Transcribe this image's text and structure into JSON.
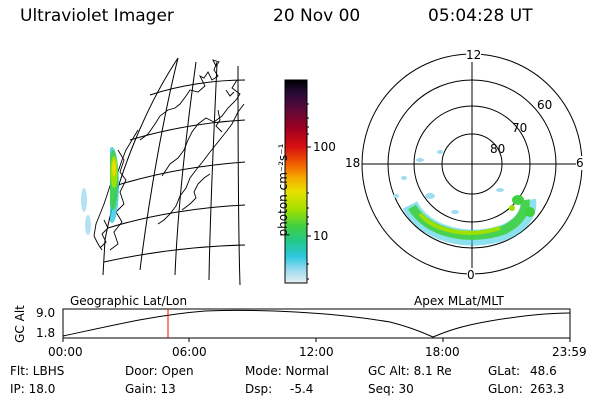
{
  "header": {
    "instrument": "Ultraviolet Imager",
    "date": "20 Nov 00",
    "time": "05:04:28 UT"
  },
  "colorbar": {
    "unit_label": "photon cm⁻²s⁻¹",
    "ticks": [
      "100",
      "10"
    ],
    "scale": "log",
    "colors": [
      "#000000",
      "#2a0a3a",
      "#5a0a3a",
      "#a00020",
      "#d81010",
      "#f05a00",
      "#f6a800",
      "#e8e000",
      "#a0e000",
      "#40d040",
      "#20c890",
      "#30c8e0",
      "#a0dcf0",
      "#e8eef0"
    ]
  },
  "left_panel": {
    "label": "Geographic Lat/Lon"
  },
  "right_panel": {
    "label": "Apex MLat/MLT",
    "mlt_labels": {
      "top": "12",
      "left": "18",
      "right": "6",
      "bottom": "0"
    },
    "lat_labels": [
      "60",
      "70",
      "80"
    ]
  },
  "gc_alt_plot": {
    "ylabel": "GC Alt",
    "ymax_label": "9.0",
    "ymin_label": "1.8",
    "x_ticks": [
      "00:00",
      "06:00",
      "12:00",
      "18:00",
      "23:59"
    ],
    "current_marker_color": "#ff0000"
  },
  "info": {
    "flt": "Flt: LBHS",
    "ip": "IP: 18.0",
    "door": "Door: Open",
    "gain": "Gain: 13",
    "mode": "Mode: Normal",
    "dsp_label": "Dsp:",
    "dsp_value": "-5.4",
    "gcalt": "GC Alt: 8.1 Re",
    "seq": "Seq: 30",
    "glat_label": "GLat:",
    "glat_value": "48.6",
    "glon_label": "GLon:",
    "glon_value": "263.3"
  }
}
